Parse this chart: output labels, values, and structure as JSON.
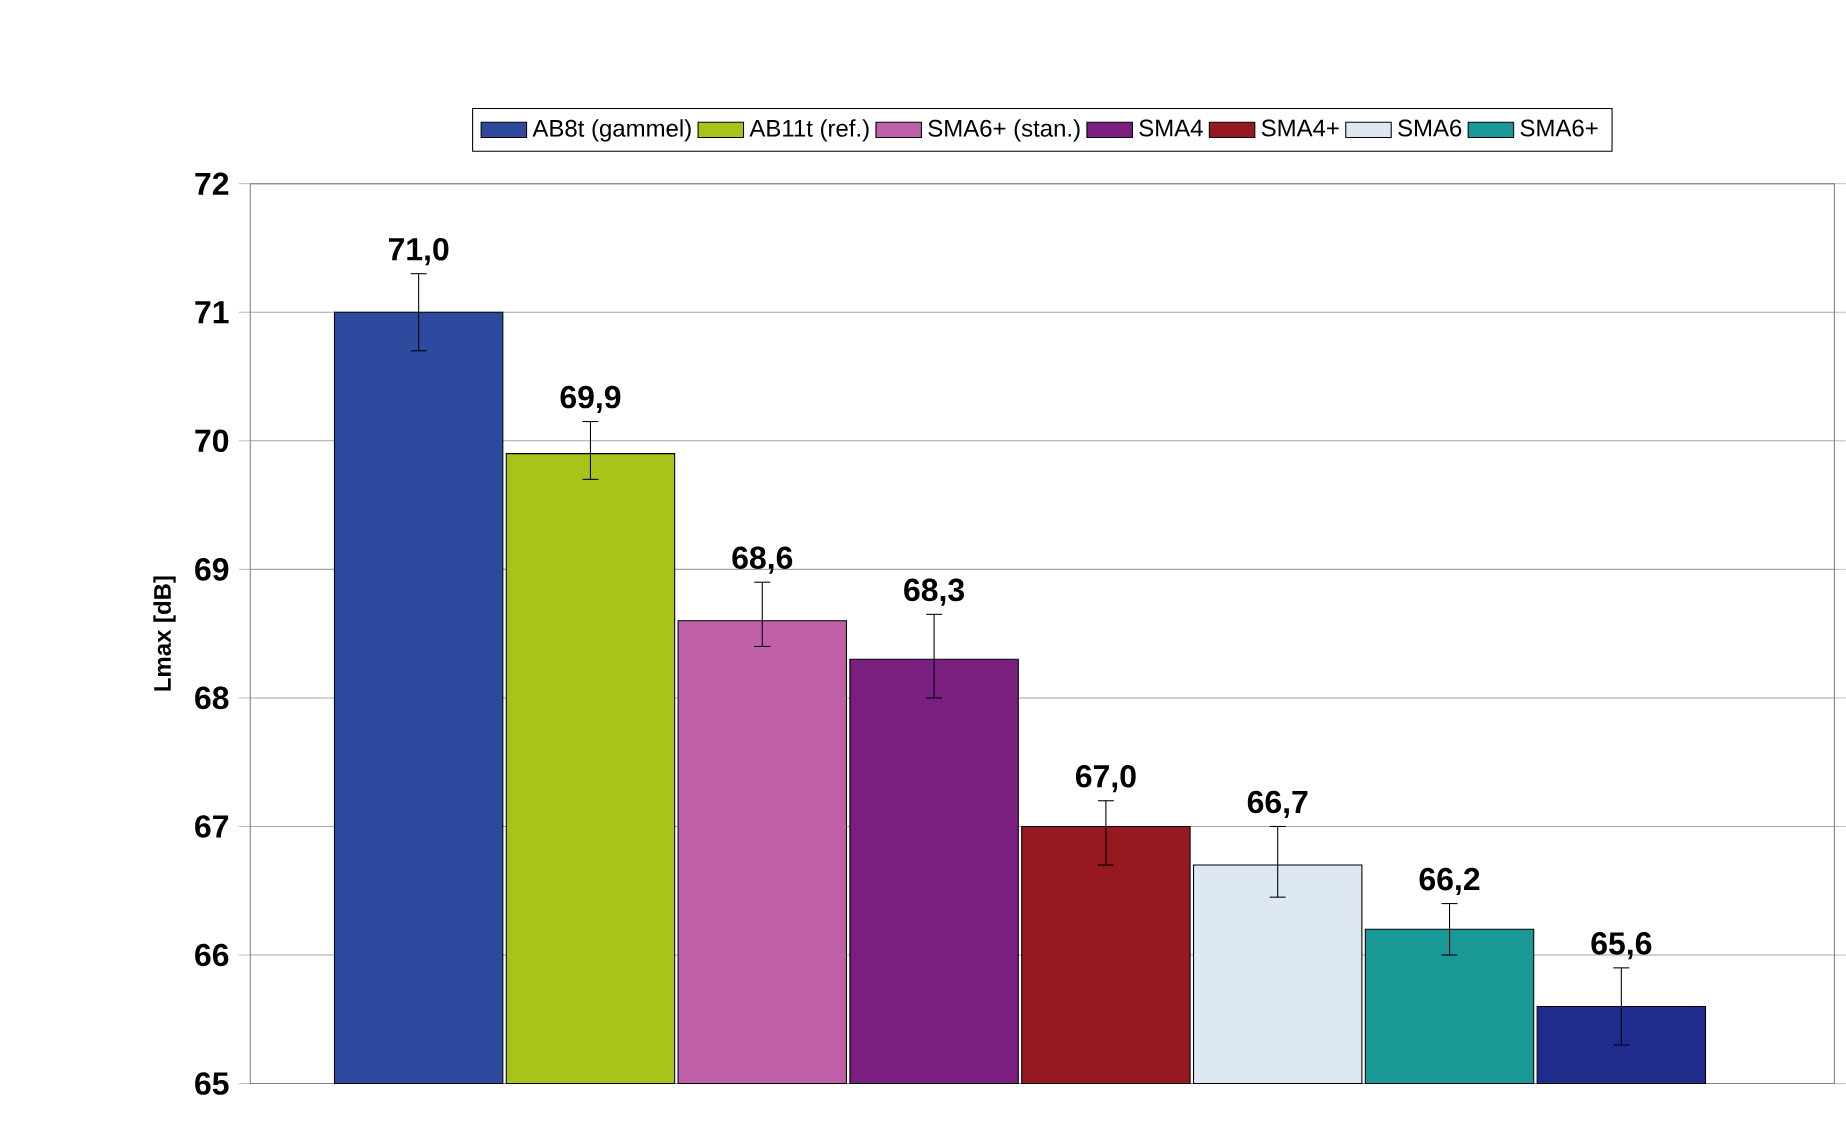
{
  "chart_data": {
    "type": "bar",
    "ylabel": "Lmax [dB]",
    "categories": [
      null
    ],
    "series": [
      {
        "name": "AB8t (gammel)",
        "color": "#2e4a9e",
        "values": [
          71.0
        ],
        "errors": [
          [
            70.7,
            71.3
          ]
        ],
        "value_labels": [
          "71,0"
        ]
      },
      {
        "name": "AB11t (ref.)",
        "color": "#a8c41a",
        "values": [
          69.9
        ],
        "errors": [
          [
            69.7,
            70.15
          ]
        ],
        "value_labels": [
          "69,9"
        ]
      },
      {
        "name": "SMA6+ (stan.)",
        "color": "#c060a8",
        "values": [
          68.6
        ],
        "errors": [
          [
            68.4,
            68.9
          ]
        ],
        "value_labels": [
          "68,6"
        ]
      },
      {
        "name": "SMA4",
        "color": "#7a1f80",
        "values": [
          68.3
        ],
        "errors": [
          [
            68.0,
            68.65
          ]
        ],
        "value_labels": [
          "68,3"
        ]
      },
      {
        "name": "SMA4+",
        "color": "#961820",
        "values": [
          67.0
        ],
        "errors": [
          [
            66.7,
            67.2
          ]
        ],
        "value_labels": [
          "67,0"
        ]
      },
      {
        "name": "SMA6",
        "color": "#dde8f2",
        "values": [
          66.7
        ],
        "errors": [
          [
            66.45,
            67.0
          ]
        ],
        "value_labels": [
          "66,7"
        ]
      },
      {
        "name": "SMA6+",
        "color": "#1a9896",
        "values": [
          66.2
        ],
        "errors": [
          [
            66.0,
            66.4
          ]
        ],
        "value_labels": [
          "66,2"
        ]
      },
      {
        "color": "#1f2c8c",
        "values": [
          65.6
        ],
        "errors": [
          [
            65.3,
            65.9
          ]
        ],
        "value_labels": [
          "65,6"
        ]
      }
    ],
    "ylim": [
      65,
      72
    ],
    "yticks": [
      65,
      66,
      67,
      68,
      69,
      70,
      71,
      72
    ],
    "grid": "y",
    "legend": "top"
  }
}
